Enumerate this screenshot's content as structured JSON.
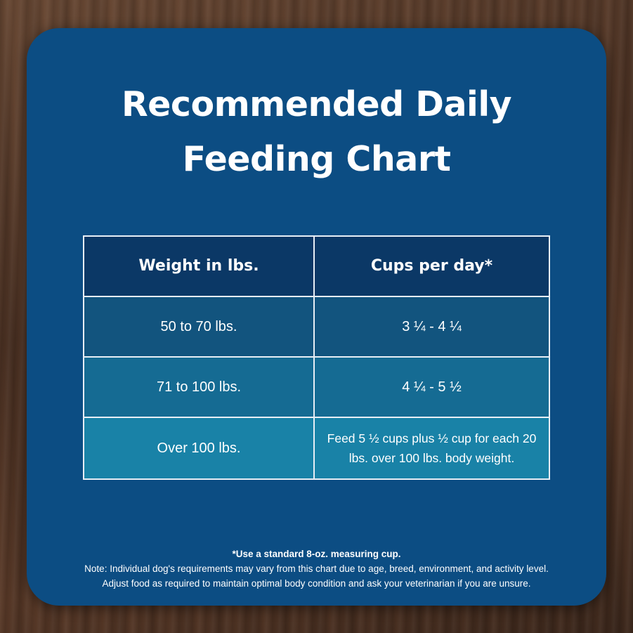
{
  "title": {
    "line1": "Recommended Daily",
    "line2": "Feeding Chart"
  },
  "table": {
    "headers": [
      "Weight in lbs.",
      "Cups per day*"
    ],
    "rows": [
      {
        "weight": "50 to 70 lbs.",
        "cups": "3 ¼ - 4 ¼"
      },
      {
        "weight": "71 to 100 lbs.",
        "cups": "4 ¼ - 5 ½"
      },
      {
        "weight": "Over 100 lbs.",
        "cups": "Feed 5 ½ cups plus ½ cup for each 20 lbs. over 100 lbs. body weight."
      }
    ]
  },
  "notes": {
    "measuring": "*Use a standard 8-oz. measuring cup.",
    "note_line1": "Note: Individual dog's requirements may vary from this chart due to age, breed, environment, and activity level.",
    "note_line2": "Adjust food as required to maintain optimal body condition and ask your veterinarian if you are unsure."
  },
  "colors": {
    "card": "#0c4d83",
    "header_row": "#0b3866",
    "row1": "#12547e",
    "row2": "#156b93",
    "row3": "#1982a7"
  }
}
